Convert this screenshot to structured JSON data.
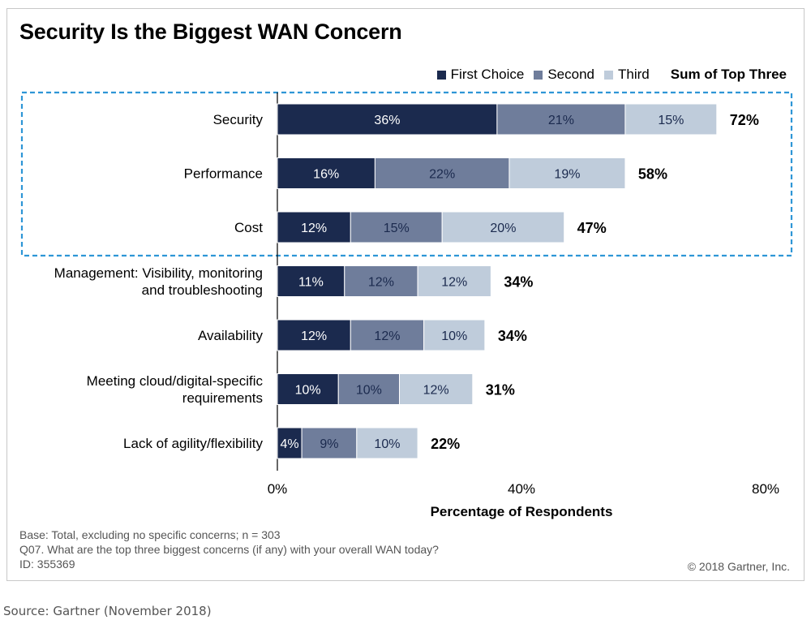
{
  "chart_data": {
    "type": "bar",
    "orientation": "horizontal",
    "stacked": true,
    "title": "Security Is the Biggest WAN Concern",
    "xlabel": "Percentage of Respondents",
    "xlim": [
      0,
      80
    ],
    "x_ticks": [
      "0%",
      "40%",
      "80%"
    ],
    "categories": [
      "Security",
      "Performance",
      "Cost",
      "Management: Visibility, monitoring\nand troubleshooting",
      "Availability",
      "Meeting cloud/digital-specific\nrequirements",
      "Lack of agility/flexibility"
    ],
    "series": [
      {
        "name": "First Choice",
        "color": "#1b2a4e",
        "values": [
          36,
          16,
          12,
          11,
          12,
          10,
          4
        ]
      },
      {
        "name": "Second",
        "color": "#6f7d9b",
        "values": [
          21,
          22,
          15,
          12,
          12,
          10,
          9
        ]
      },
      {
        "name": "Third",
        "color": "#bfccdb",
        "values": [
          15,
          19,
          20,
          12,
          10,
          12,
          10
        ]
      }
    ],
    "sum_label": "Sum of Top Three",
    "sums": [
      72,
      58,
      47,
      34,
      34,
      31,
      22
    ],
    "highlight": {
      "categories": [
        "Security",
        "Performance",
        "Cost"
      ],
      "color": "#2e96d6",
      "style": "dashed-box"
    },
    "legend_position": "top-right",
    "grid": false
  },
  "footer": {
    "base": "Base: Total, excluding no specific concerns; n = 303",
    "question": "Q07. What are the top three biggest concerns (if any) with your overall WAN today?",
    "id": "ID: 355369",
    "copyright": "© 2018 Gartner, Inc."
  },
  "source": "Source: Gartner (November 2018)"
}
